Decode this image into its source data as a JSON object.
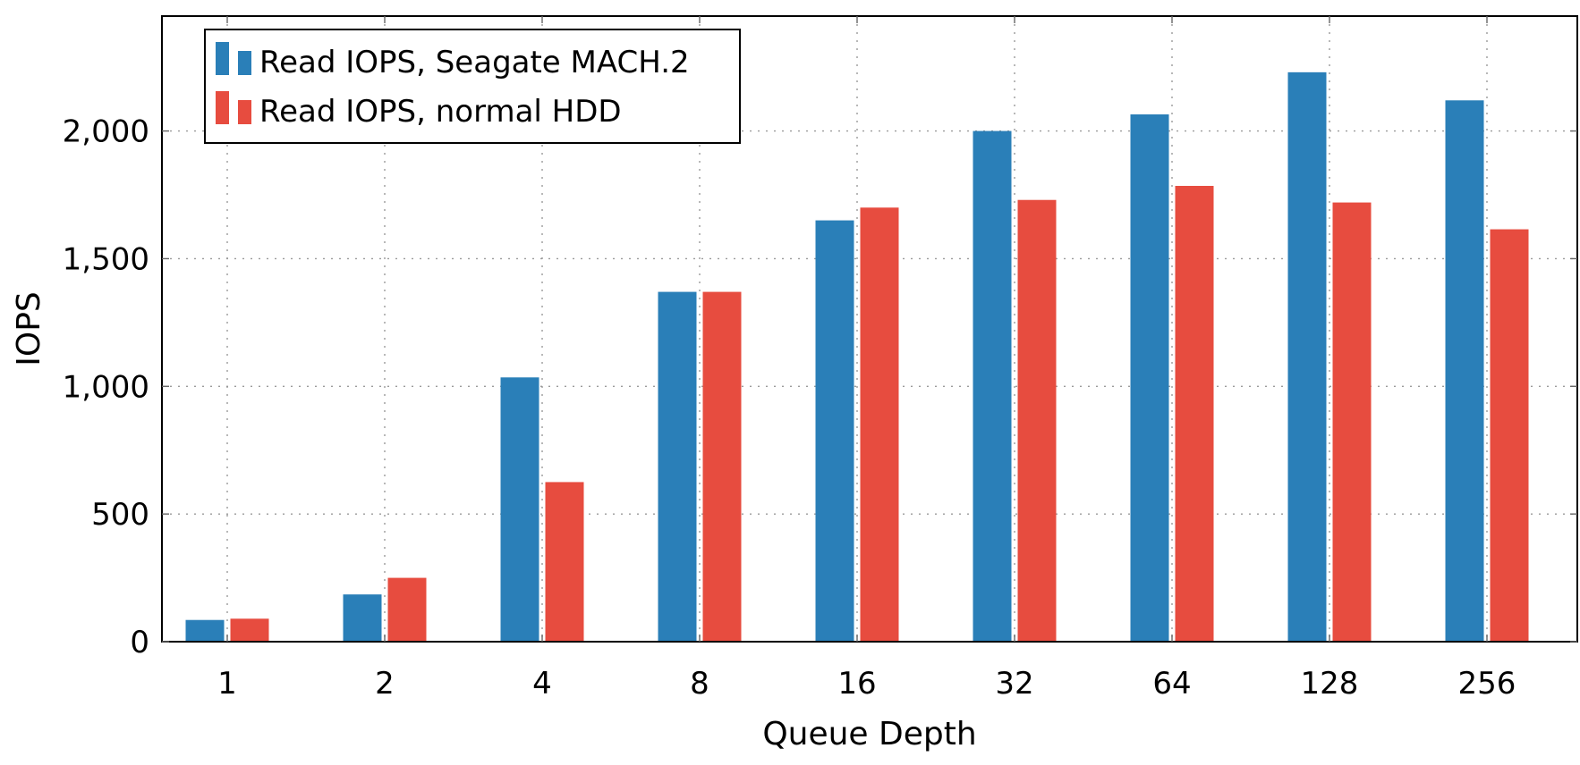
{
  "chart_data": {
    "type": "bar",
    "title": "",
    "xlabel": "Queue Depth",
    "ylabel": "IOPS",
    "categories": [
      "1",
      "2",
      "4",
      "8",
      "16",
      "32",
      "64",
      "128",
      "256"
    ],
    "series": [
      {
        "name": "Read IOPS, Seagate MACH.2",
        "color": "#2a7fb8",
        "values": [
          85,
          185,
          1035,
          1370,
          1650,
          2000,
          2065,
          2230,
          2120
        ]
      },
      {
        "name": "Read IOPS, normal HDD",
        "color": "#e74c3f",
        "values": [
          90,
          250,
          625,
          1370,
          1700,
          1730,
          1785,
          1720,
          1615
        ]
      }
    ],
    "ylim": [
      0,
      2450
    ],
    "yticks": [
      0,
      500,
      1000,
      1500,
      2000
    ],
    "ytick_labels": [
      "0",
      "500",
      "1,000",
      "1,500",
      "2,000"
    ],
    "grid": true,
    "legend_position": "top-left"
  }
}
